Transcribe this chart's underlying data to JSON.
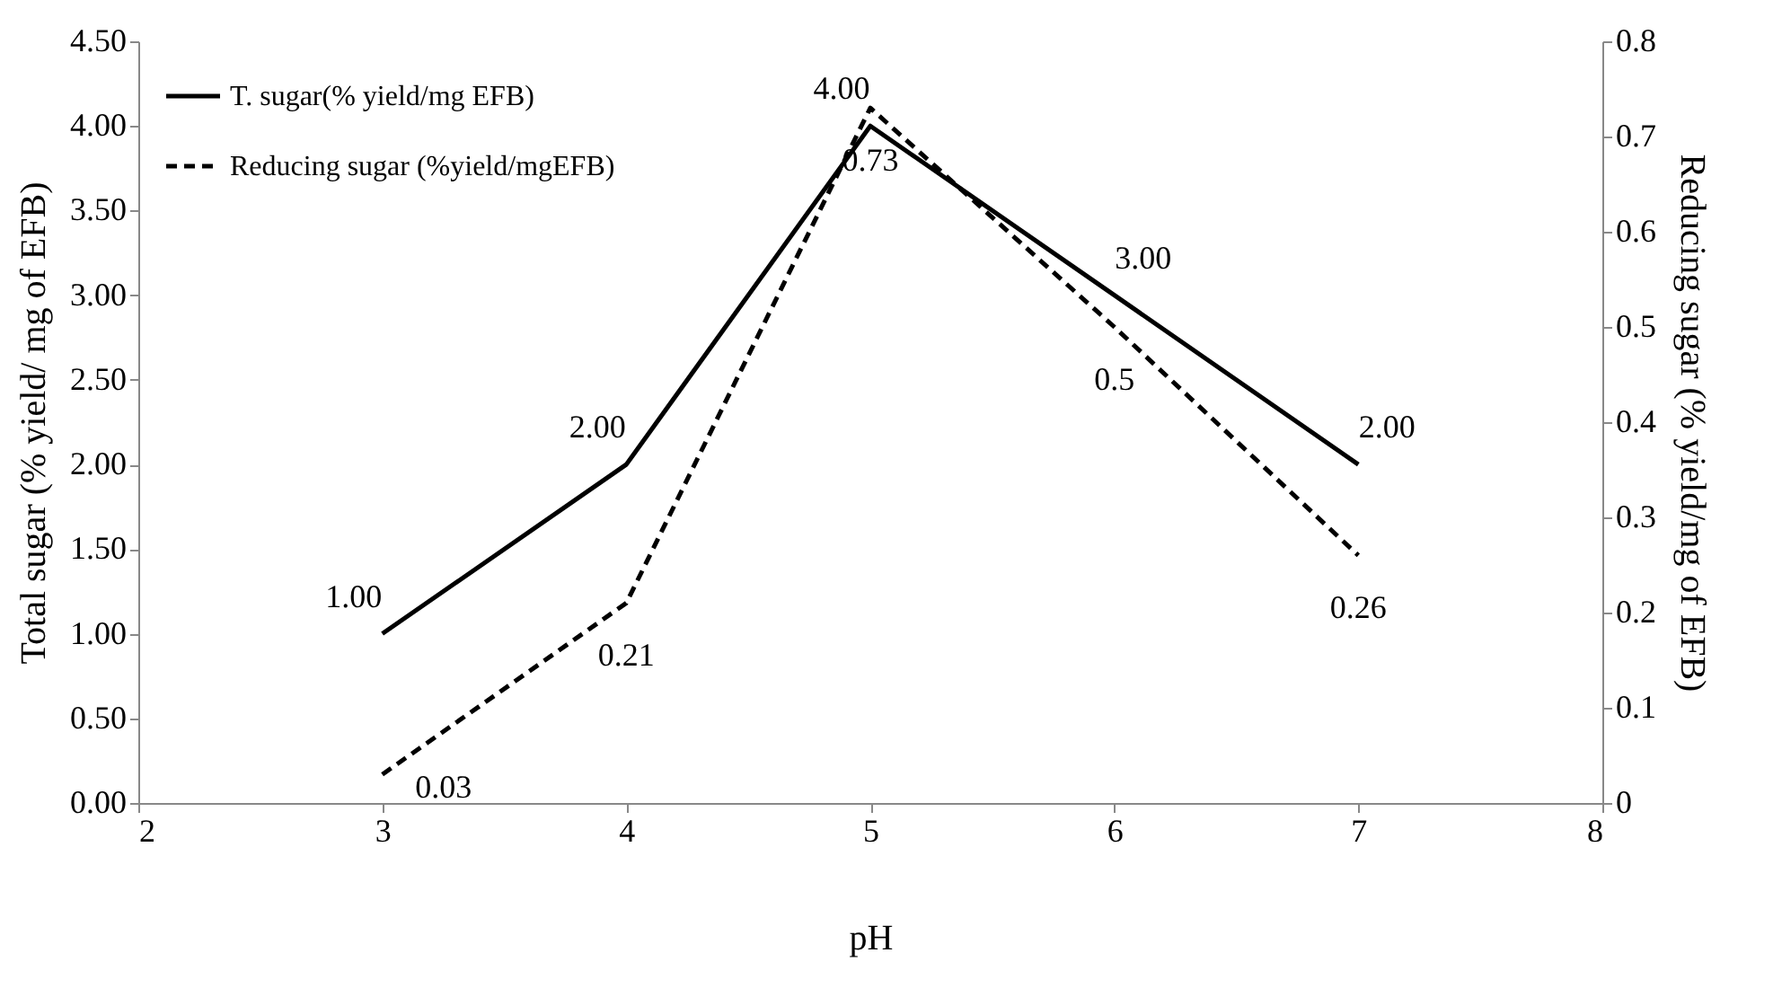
{
  "chart_data": {
    "type": "line",
    "xlabel": "pH",
    "ylabel": "Total sugar (% yield/ mg of EFB)",
    "y2label": "Reducing sugar (% yield/mg of EFB)",
    "x": [
      3,
      4,
      5,
      6,
      7
    ],
    "xlim": [
      2,
      8
    ],
    "xticks": [
      2,
      3,
      4,
      5,
      6,
      7,
      8
    ],
    "ylim": [
      0,
      4.5
    ],
    "yticks": [
      {
        "value": 0,
        "label": "0.00"
      },
      {
        "value": 0.5,
        "label": "0.50"
      },
      {
        "value": 1,
        "label": "1.00"
      },
      {
        "value": 1.5,
        "label": "1.50"
      },
      {
        "value": 2,
        "label": "2.00"
      },
      {
        "value": 2.5,
        "label": "2.50"
      },
      {
        "value": 3,
        "label": "3.00"
      },
      {
        "value": 3.5,
        "label": "3.50"
      },
      {
        "value": 4,
        "label": "4.00"
      },
      {
        "value": 4.5,
        "label": "4.50"
      }
    ],
    "y2lim": [
      0,
      0.8
    ],
    "y2ticks": [
      0,
      0.1,
      0.2,
      0.3,
      0.4,
      0.5,
      0.6,
      0.7,
      0.8
    ],
    "legend": "top left",
    "grid": false,
    "series": [
      {
        "name": "T. sugar(% yield/mg EFB)",
        "color": "#000000",
        "line_style": "solid",
        "values": [
          1,
          2,
          4,
          3,
          2
        ],
        "value_labels": [
          "1.00",
          "2.00",
          "4.00",
          "3.00",
          "2.00"
        ]
      },
      {
        "name": "Reducing sugar (%yield/mgEFB)",
        "color": "#000000",
        "line_style": "dashed",
        "axis": "y2",
        "values": [
          0.03,
          0.21,
          0.73,
          0.5,
          0.26
        ],
        "value_labels": [
          "0.03",
          "0.21",
          "0.73",
          "0.5",
          "0.26"
        ]
      }
    ]
  }
}
